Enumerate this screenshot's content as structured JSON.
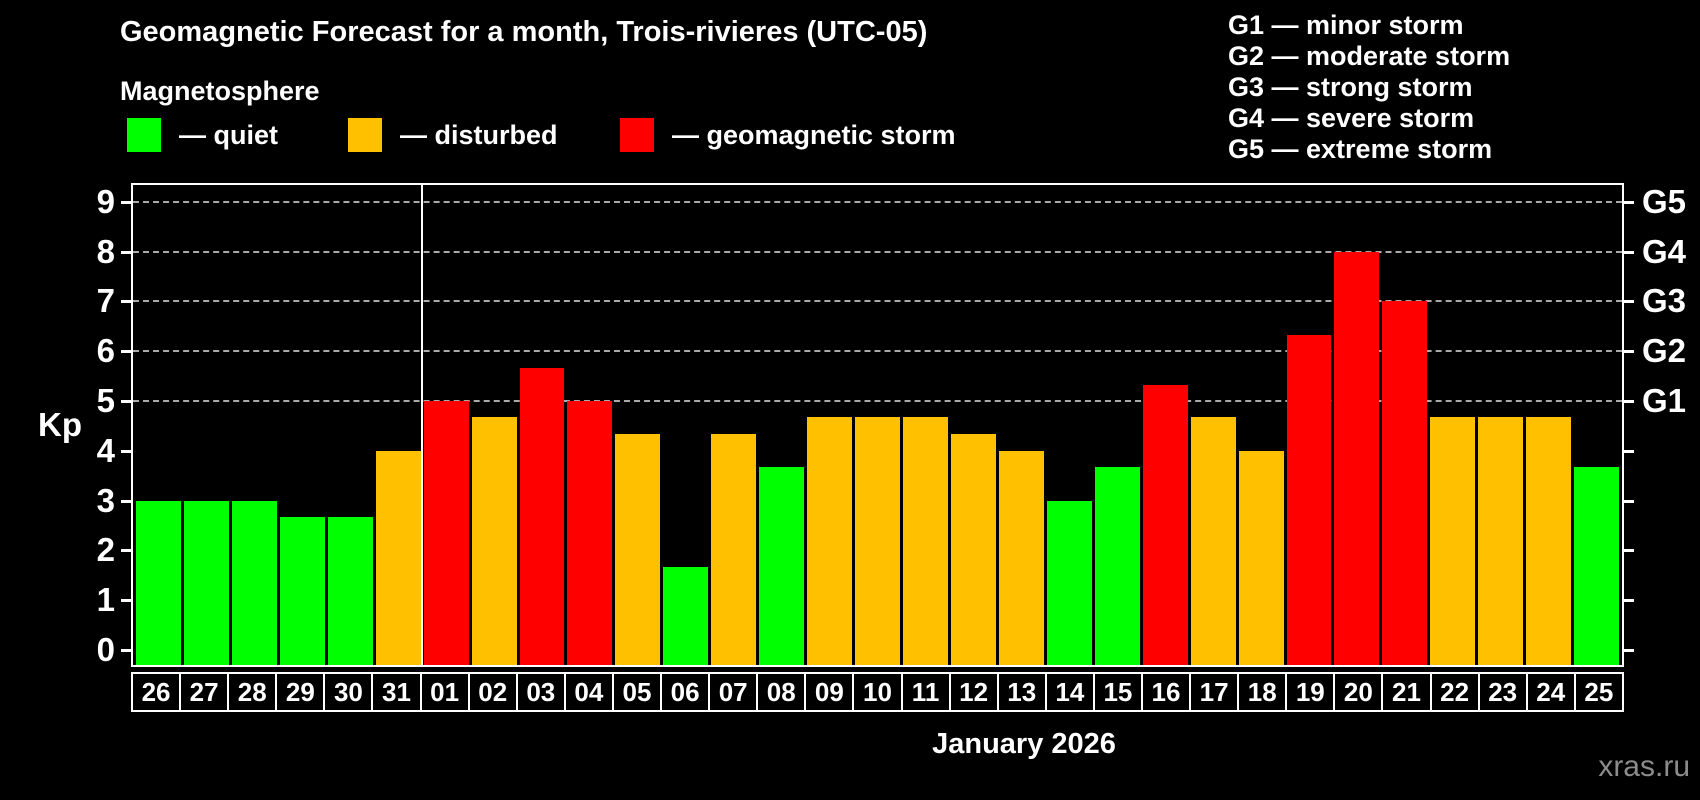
{
  "title": "Geomagnetic Forecast for a month, Trois-rivieres (UTC-05)",
  "subtitle": "Magnetosphere",
  "legend": [
    {
      "key": "quiet",
      "label": "— quiet",
      "color": "#00ff00"
    },
    {
      "key": "disturbed",
      "label": "— disturbed",
      "color": "#ffc000"
    },
    {
      "key": "storm",
      "label": "— geomagnetic storm",
      "color": "#ff0000"
    }
  ],
  "g_scale_legend": [
    "G1 — minor storm",
    "G2 — moderate storm",
    "G3 — strong storm",
    "G4 — severe storm",
    "G5 — extreme storm"
  ],
  "watermark": "xras.ru",
  "chart_data": {
    "type": "bar",
    "title": "Geomagnetic Forecast for a month, Trois-rivieres (UTC-05)",
    "ylabel": "Kp",
    "xlabel": "January 2026",
    "ylim": [
      -0.34,
      9.34
    ],
    "yticks": [
      0,
      1,
      2,
      3,
      4,
      5,
      6,
      7,
      8,
      9
    ],
    "gridlines_kp": [
      5,
      6,
      7,
      8,
      9
    ],
    "grid_color": "#aaaaaa",
    "right_axis_labels": [
      {
        "kp": 5,
        "label": "G1"
      },
      {
        "kp": 6,
        "label": "G2"
      },
      {
        "kp": 7,
        "label": "G3"
      },
      {
        "kp": 8,
        "label": "G4"
      },
      {
        "kp": 9,
        "label": "G5"
      }
    ],
    "separator_after_index": 5,
    "categories": [
      "26",
      "27",
      "28",
      "29",
      "30",
      "31",
      "01",
      "02",
      "03",
      "04",
      "05",
      "06",
      "07",
      "08",
      "09",
      "10",
      "11",
      "12",
      "13",
      "14",
      "15",
      "16",
      "17",
      "18",
      "19",
      "20",
      "21",
      "22",
      "23",
      "24",
      "25"
    ],
    "values": [
      3.0,
      3.0,
      3.0,
      2.67,
      2.67,
      4.0,
      5.0,
      4.67,
      5.67,
      5.0,
      4.33,
      1.67,
      4.33,
      3.67,
      4.67,
      4.67,
      4.67,
      4.33,
      4.0,
      3.0,
      3.67,
      5.33,
      4.67,
      4.0,
      6.33,
      8.0,
      7.0,
      4.67,
      4.67,
      4.67,
      3.67
    ],
    "statuses": [
      "quiet",
      "quiet",
      "quiet",
      "quiet",
      "quiet",
      "disturbed",
      "storm",
      "disturbed",
      "storm",
      "storm",
      "disturbed",
      "quiet",
      "disturbed",
      "quiet",
      "disturbed",
      "disturbed",
      "disturbed",
      "disturbed",
      "disturbed",
      "quiet",
      "quiet",
      "storm",
      "disturbed",
      "disturbed",
      "storm",
      "storm",
      "storm",
      "disturbed",
      "disturbed",
      "disturbed",
      "quiet"
    ]
  }
}
